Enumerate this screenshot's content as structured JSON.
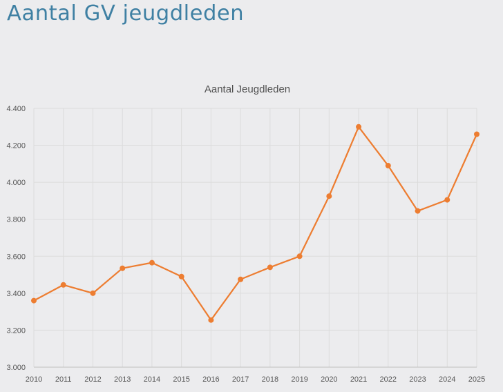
{
  "page": {
    "heading": "Aantal GV jeugdleden"
  },
  "chart_data": {
    "type": "line",
    "title": "Aantal Jeugdleden",
    "xlabel": "",
    "ylabel": "",
    "categories": [
      "2010",
      "2011",
      "2012",
      "2013",
      "2014",
      "2015",
      "2016",
      "2017",
      "2018",
      "2019",
      "2020",
      "2021",
      "2022",
      "2023",
      "2024",
      "2025"
    ],
    "series": [
      {
        "name": "Aantal Jeugdleden",
        "values": [
          3360,
          3445,
          3400,
          3535,
          3565,
          3490,
          3255,
          3475,
          3540,
          3600,
          3925,
          4300,
          4090,
          3845,
          3905,
          4260
        ]
      }
    ],
    "ylim": [
      3000,
      4400
    ],
    "yticks": [
      3000,
      3200,
      3400,
      3600,
      3800,
      4000,
      4200,
      4400
    ],
    "ytick_labels": [
      "3.000",
      "3.200",
      "3.400",
      "3.600",
      "3.800",
      "4.000",
      "4.200",
      "4.400"
    ],
    "grid": true,
    "legend": "none",
    "colors": {
      "line": "#ed7d31",
      "grid": "#dcdcdc",
      "axis": "#bfbfbf"
    }
  }
}
